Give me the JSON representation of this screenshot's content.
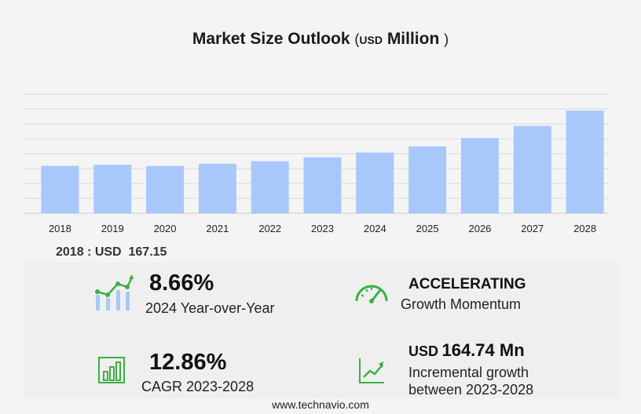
{
  "title": {
    "main": "Market Size Outlook",
    "unit_prefix": "USD",
    "unit": "Million",
    "open_paren": "(",
    "close_paren": ")"
  },
  "chart_data": {
    "type": "bar",
    "categories": [
      "2018",
      "2019",
      "2020",
      "2021",
      "2022",
      "2023",
      "2024",
      "2025",
      "2026",
      "2027",
      "2028"
    ],
    "values": [
      167.15,
      171.0,
      166.5,
      174.5,
      183.5,
      197.0,
      214.0,
      235.5,
      265.0,
      307.5,
      361.5
    ],
    "ylim": [
      0,
      420
    ],
    "grid": true,
    "bar_color": "#a8c8fc",
    "grid_color": "#d8d8d8"
  },
  "base": {
    "year": "2018",
    "sep": ":",
    "currency": "USD",
    "value": "167.15"
  },
  "stats": {
    "yoy_value": "8.66%",
    "yoy_label": "2024 Year-over-Year",
    "momentum_value": "ACCELERATING",
    "momentum_label": "Growth Momentum",
    "cagr_value": "12.86%",
    "cagr_label": "CAGR 2023-2028",
    "incr_currency": "USD",
    "incr_value": "164.74 Mn",
    "incr_label1": "Incremental growth",
    "incr_label2": "between 2023-2028"
  },
  "colors": {
    "accent_green": "#3cb043",
    "accent_blue": "#a8c8fc"
  },
  "icons": [
    "growth-chart-icon",
    "speedometer-icon",
    "bar-growth-icon",
    "trend-line-icon"
  ],
  "footer": "www.technavio.com"
}
